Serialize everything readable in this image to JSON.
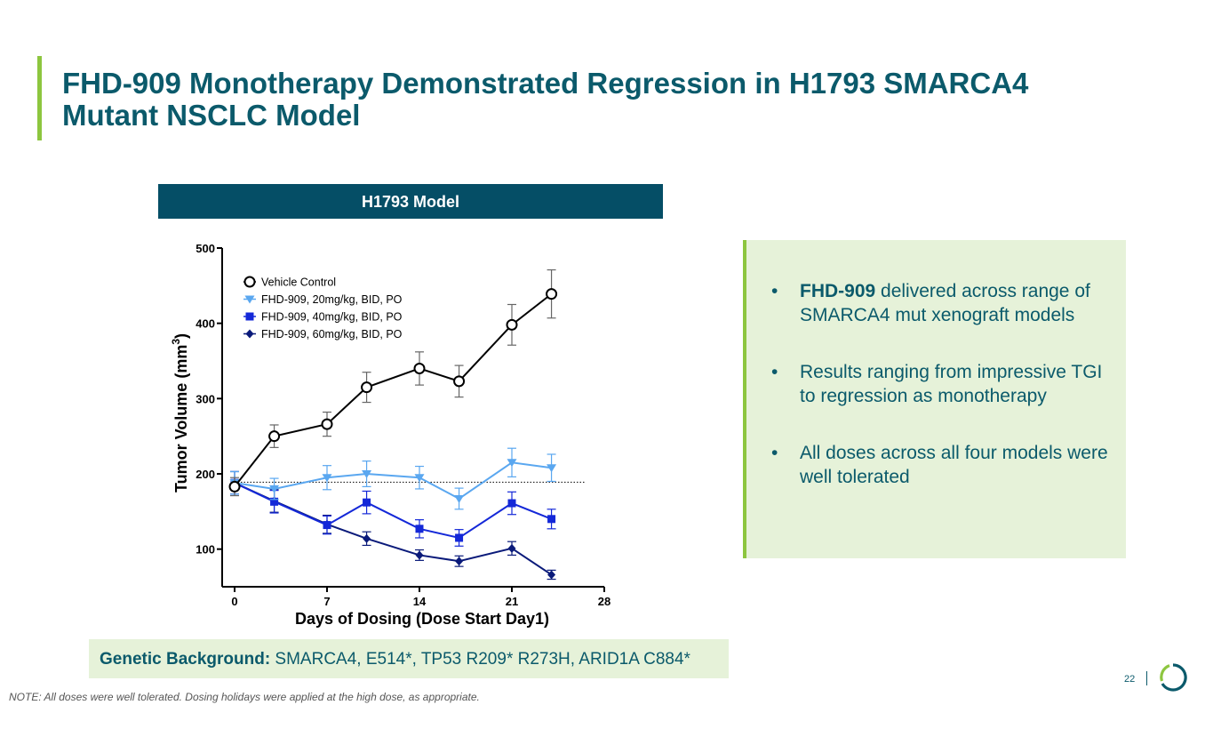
{
  "title": "FHD-909 Monotherapy Demonstrated Regression in H1793 SMARCA4 Mutant NSCLC Model",
  "model_header": "H1793 Model",
  "bullet_marker": "•",
  "bullets": [
    {
      "bold": "FHD-909",
      "text": " delivered across range of SMARCA4 mut xenograft models"
    },
    {
      "bold": "",
      "text": "Results ranging from impressive TGI to regression as monotherapy"
    },
    {
      "bold": "",
      "text": "All doses across all four models were well tolerated"
    }
  ],
  "genetic": {
    "label": "Genetic Background:",
    "value": " SMARCA4, E514*, TP53 R209* R273H, ARID1A C884*"
  },
  "note": "NOTE: All doses were well tolerated. Dosing holidays were applied at the high dose, as appropriate.",
  "page_number": "22",
  "colors": {
    "title": "#0b5a6b",
    "accent_green": "#8dc63f",
    "header_bg": "#054e66",
    "panel_bg": "#e6f2d9"
  },
  "chart_data": {
    "type": "line",
    "xlabel": "Days of Dosing (Dose Start Day1)",
    "ylabel": "Tumor Volume (mm",
    "ylabel_sup": "3",
    "ylabel_close": ")",
    "xlim": [
      0,
      28
    ],
    "ylim": [
      50,
      500
    ],
    "xticks": [
      "0",
      "7",
      "14",
      "21",
      "28"
    ],
    "yticks": [
      "100",
      "200",
      "300",
      "400",
      "500"
    ],
    "reference_line_y": 189,
    "x": [
      0,
      3,
      7,
      10,
      14,
      17,
      21,
      24
    ],
    "series": [
      {
        "name": "Vehicle Control",
        "marker": "circle-open",
        "color": "#000000",
        "values": [
          183,
          250,
          266,
          315,
          340,
          323,
          398,
          439
        ],
        "errors": [
          12,
          15,
          16,
          20,
          22,
          21,
          27,
          32
        ]
      },
      {
        "name": "FHD-909, 20mg/kg, BID, PO",
        "marker": "triangle-down",
        "color": "#5aa7f0",
        "values": [
          188,
          180,
          195,
          200,
          195,
          167,
          215,
          208
        ],
        "errors": [
          15,
          14,
          16,
          17,
          15,
          14,
          19,
          18
        ]
      },
      {
        "name": "FHD-909, 40mg/kg, BID, PO",
        "marker": "square",
        "color": "#1428d8",
        "values": [
          188,
          163,
          132,
          162,
          127,
          115,
          161,
          140
        ],
        "errors": [
          15,
          15,
          12,
          15,
          12,
          11,
          15,
          13
        ]
      },
      {
        "name": "FHD-909, 60mg/kg, BID, PO",
        "marker": "diamond",
        "color": "#0a1a7a",
        "values": [
          188,
          164,
          133,
          114,
          92,
          84,
          101,
          66
        ],
        "errors": [
          15,
          15,
          12,
          9,
          7,
          7,
          9,
          6
        ]
      }
    ]
  }
}
